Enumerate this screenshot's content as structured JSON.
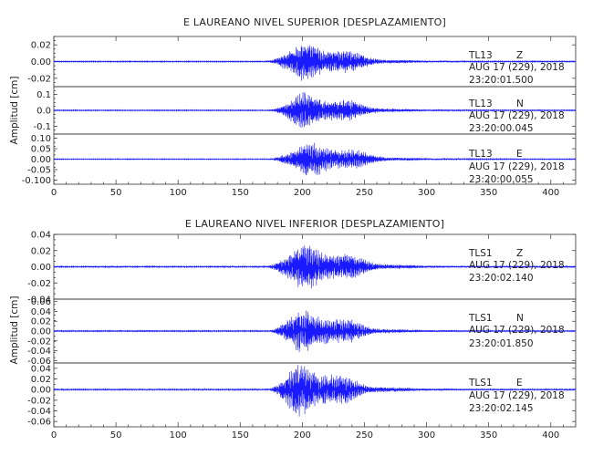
{
  "chart_data": [
    {
      "type": "line",
      "title": "E LAUREANO NIVEL SUPERIOR [DESPLAZAMIENTO]",
      "ylabel": "Amplitud [cm]",
      "xlim": [
        0,
        420
      ],
      "x_ticks": [
        0,
        50,
        100,
        150,
        200,
        250,
        300,
        350,
        400
      ],
      "panels": [
        {
          "station": "TL13",
          "component": "Z",
          "date": "AUG 17 (229), 2018",
          "time": "23:20:01.500",
          "ylim": [
            -0.03,
            0.03
          ],
          "y_ticks": [
            {
              "v": 0.02,
              "l": "0.02"
            },
            {
              "v": 0.0,
              "l": "0.00"
            },
            {
              "v": -0.02,
              "l": "-0.02"
            }
          ],
          "onset_s": 170,
          "peak_s": 200,
          "peak_amp": 0.028,
          "noise_amp": 0.0006,
          "seed": 11
        },
        {
          "station": "TL13",
          "component": "N",
          "date": "AUG 17 (229), 2018",
          "time": "23:20:00.045",
          "ylim": [
            -0.15,
            0.15
          ],
          "y_ticks": [
            {
              "v": 0.1,
              "l": "0.1"
            },
            {
              "v": 0.0,
              "l": "0.0"
            },
            {
              "v": -0.1,
              "l": "-0.1"
            }
          ],
          "onset_s": 172,
          "peak_s": 200,
          "peak_amp": 0.14,
          "noise_amp": 0.003,
          "seed": 23
        },
        {
          "station": "TL13",
          "component": "E",
          "date": "AUG 17 (229), 2018",
          "time": "23:20:00.055",
          "ylim": [
            -0.12,
            0.12
          ],
          "y_ticks": [
            {
              "v": 0.1,
              "l": "0.10"
            },
            {
              "v": 0.05,
              "l": "0.05"
            },
            {
              "v": 0.0,
              "l": "0.00"
            },
            {
              "v": -0.05,
              "l": "-0.05"
            },
            {
              "v": -0.1,
              "l": "-0.100"
            }
          ],
          "onset_s": 172,
          "peak_s": 205,
          "peak_amp": 0.1,
          "noise_amp": 0.002,
          "seed": 37
        }
      ]
    },
    {
      "type": "line",
      "title": "E LAUREANO NIVEL INFERIOR [DESPLAZAMIENTO]",
      "ylabel": "Amplitud [cm]",
      "xlim": [
        0,
        420
      ],
      "x_ticks": [
        0,
        50,
        100,
        150,
        200,
        250,
        300,
        350,
        400
      ],
      "panels": [
        {
          "station": "TLS1",
          "component": "Z",
          "date": "AUG 17 (229), 2018",
          "time": "23:20:02.140",
          "ylim": [
            -0.04,
            0.04
          ],
          "y_ticks": [
            {
              "v": 0.04,
              "l": "0.04"
            },
            {
              "v": 0.02,
              "l": "0.02"
            },
            {
              "v": 0.0,
              "l": "0.00"
            },
            {
              "v": -0.02,
              "l": "-0.02"
            },
            {
              "v": -0.04,
              "l": "-0.04"
            }
          ],
          "onset_s": 170,
          "peak_s": 200,
          "peak_amp": 0.035,
          "noise_amp": 0.0008,
          "seed": 41
        },
        {
          "station": "TLS1",
          "component": "N",
          "date": "AUG 17 (229), 2018",
          "time": "23:20:01.850",
          "ylim": [
            -0.065,
            0.065
          ],
          "y_ticks": [
            {
              "v": 0.06,
              "l": "0.06"
            },
            {
              "v": 0.04,
              "l": "0.04"
            },
            {
              "v": 0.02,
              "l": "0.02"
            },
            {
              "v": 0.0,
              "l": "0.00"
            },
            {
              "v": -0.02,
              "l": "-0.02"
            },
            {
              "v": -0.04,
              "l": "-0.04"
            },
            {
              "v": -0.06,
              "l": "-0.06"
            }
          ],
          "onset_s": 172,
          "peak_s": 198,
          "peak_amp": 0.055,
          "noise_amp": 0.0012,
          "seed": 53
        },
        {
          "station": "TLS1",
          "component": "E",
          "date": "AUG 17 (229), 2018",
          "time": "23:20:02.145",
          "ylim": [
            -0.07,
            0.05
          ],
          "y_ticks": [
            {
              "v": 0.04,
              "l": "0.04"
            },
            {
              "v": 0.02,
              "l": "0.02"
            },
            {
              "v": 0.0,
              "l": "0.00"
            },
            {
              "v": -0.02,
              "l": "-0.02"
            },
            {
              "v": -0.04,
              "l": "-0.04"
            },
            {
              "v": -0.06,
              "l": "-0.06"
            }
          ],
          "onset_s": 172,
          "peak_s": 195,
          "peak_amp": 0.06,
          "noise_amp": 0.0012,
          "seed": 67
        }
      ]
    }
  ],
  "colors": {
    "trace": "#1a1aff",
    "axis": "#333333"
  }
}
